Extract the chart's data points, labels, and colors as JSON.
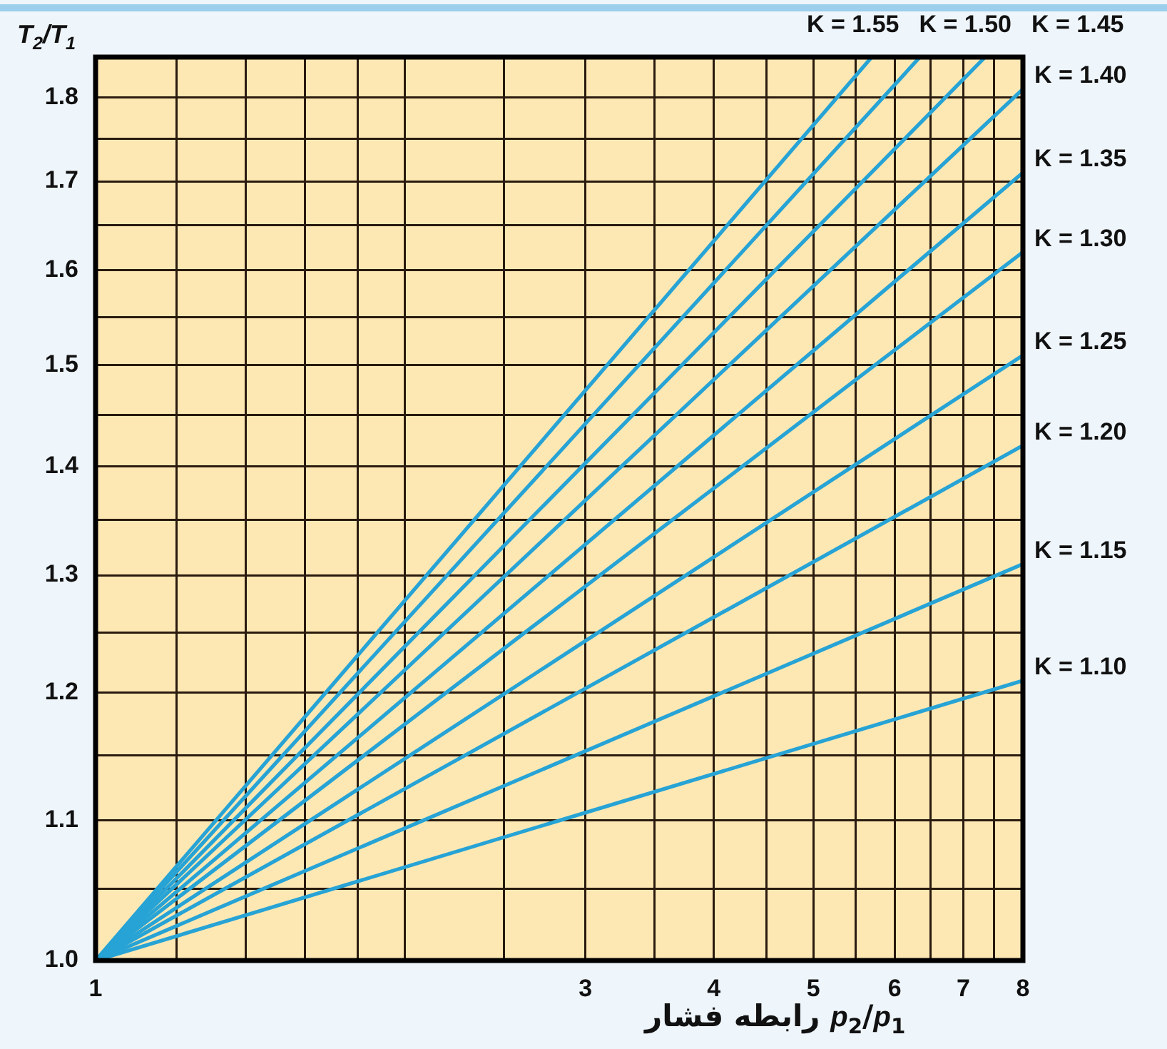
{
  "chart_data": {
    "type": "line",
    "xlabel": "رابطه فشار p$_{2}$/p$_{1}$",
    "ylabel": "T$_{2}$/T$_{1}$",
    "log": "xy",
    "xlim": [
      1,
      8
    ],
    "xticks": [
      1,
      {
        "value": 1.2,
        "label": null
      },
      {
        "value": 1.4,
        "label": null
      },
      {
        "value": 1.6,
        "label": null
      },
      {
        "value": 1.8,
        "label": null
      },
      {
        "value": 2,
        "label": null
      },
      {
        "value": 2.5,
        "label": null
      },
      3,
      {
        "value": 3.5,
        "label": null
      },
      4,
      {
        "value": 4.5,
        "label": null
      },
      5,
      {
        "value": 5.5,
        "label": null
      },
      6,
      {
        "value": 6.5,
        "label": null
      },
      7,
      {
        "value": 7.5,
        "label": null
      },
      8
    ],
    "ylim": [
      1,
      1.85
    ],
    "yticks": [
      {
        "value": 1,
        "label": "1.0"
      },
      {
        "value": 1.05,
        "label": null
      },
      1.1,
      {
        "value": 1.15,
        "label": null
      },
      1.2,
      {
        "value": 1.25,
        "label": null
      },
      1.3,
      {
        "value": 1.35,
        "label": null
      },
      1.4,
      {
        "value": 1.45,
        "label": null
      },
      1.5,
      {
        "value": 1.55,
        "label": null
      },
      1.6,
      {
        "value": 1.65,
        "label": null
      },
      1.7,
      {
        "value": 1.75,
        "label": null
      },
      1.8
    ],
    "grid": true,
    "marker": "none",
    "line_style": "solid",
    "series": [
      {
        "name": "Κ = 1.10",
        "color": "#27a3d5",
        "x": [
          1,
          8
        ],
        "values": [
          1,
          1.21
        ]
      },
      {
        "name": "Κ = 1.15",
        "color": "#27a3d5",
        "x": [
          1,
          8
        ],
        "values": [
          1,
          1.31
        ]
      },
      {
        "name": "Κ = 1.20",
        "color": "#27a3d5",
        "x": [
          1,
          8
        ],
        "values": [
          1,
          1.42
        ]
      },
      {
        "name": "Κ = 1.25",
        "color": "#27a3d5",
        "x": [
          1,
          8
        ],
        "values": [
          1,
          1.51
        ]
      },
      {
        "name": "Κ = 1.30",
        "color": "#27a3d5",
        "x": [
          1,
          8
        ],
        "values": [
          1,
          1.62
        ]
      },
      {
        "name": "Κ = 1.35",
        "color": "#27a3d5",
        "x": [
          1,
          8
        ],
        "values": [
          1,
          1.71
        ]
      },
      {
        "name": "Κ = 1.40",
        "color": "#27a3d5",
        "x": [
          1,
          8
        ],
        "values": [
          1,
          1.81
        ]
      },
      {
        "name": "Κ = 1.45",
        "color": "#27a3d5",
        "x": [
          1,
          7.35
        ],
        "values": [
          1,
          1.85
        ]
      },
      {
        "name": "Κ = 1.50",
        "color": "#27a3d5",
        "x": [
          1,
          6.35
        ],
        "values": [
          1,
          1.85
        ]
      },
      {
        "name": "Κ = 1.55",
        "color": "#27a3d5",
        "x": [
          1,
          5.7
        ],
        "values": [
          1,
          1.85
        ]
      }
    ]
  }
}
